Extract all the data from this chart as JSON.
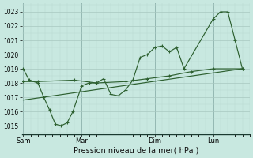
{
  "xlabel": "Pression niveau de la mer( hPa )",
  "background_color": "#c8e8e0",
  "grid_major_color": "#a8c8c0",
  "grid_minor_color": "#b8d8d0",
  "line_color": "#2d6030",
  "ylim": [
    1014.4,
    1023.6
  ],
  "yticks": [
    1015,
    1016,
    1017,
    1018,
    1019,
    1020,
    1021,
    1022,
    1023
  ],
  "day_labels": [
    "Sam",
    "Mar",
    "Dim",
    "Lun"
  ],
  "day_positions": [
    0,
    4,
    9,
    13
  ],
  "xlim": [
    -0.1,
    15.5
  ],
  "vline_color": "#5a8888",
  "s1x": [
    0,
    0.4,
    1.0,
    1.4,
    1.8,
    2.2,
    2.6,
    3.0,
    3.4,
    4.0,
    4.5,
    5.0,
    5.5,
    6.0,
    6.5,
    7.0,
    7.5,
    8.0,
    8.5,
    9.0,
    9.5,
    10.0,
    10.5,
    11.0,
    13.0,
    13.5,
    14.0,
    14.5,
    15.0
  ],
  "s1y": [
    1019.0,
    1018.2,
    1018.0,
    1017.0,
    1016.1,
    1015.1,
    1015.0,
    1015.2,
    1016.0,
    1017.8,
    1018.0,
    1018.0,
    1018.3,
    1017.2,
    1017.1,
    1017.5,
    1018.2,
    1019.8,
    1020.0,
    1020.5,
    1020.6,
    1020.2,
    1020.5,
    1019.0,
    1022.5,
    1023.0,
    1023.0,
    1021.0,
    1019.0
  ],
  "s2x": [
    0,
    1.0,
    3.5,
    5.0,
    7.0,
    8.5,
    10.0,
    11.5,
    13.0,
    15.0
  ],
  "s2y": [
    1018.1,
    1018.1,
    1018.2,
    1018.0,
    1018.1,
    1018.3,
    1018.5,
    1018.8,
    1019.0,
    1019.0
  ],
  "s3x": [
    0,
    15.0
  ],
  "s3y": [
    1016.8,
    1019.0
  ],
  "xlabel_fontsize": 7,
  "tick_fontsize": 5.5,
  "linewidth": 0.85,
  "markersize": 3.0
}
